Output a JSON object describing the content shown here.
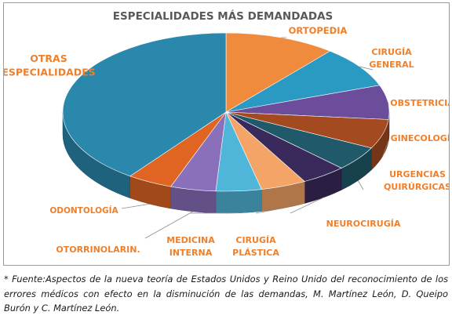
{
  "chart_data": {
    "type": "pie",
    "title": "ESPECIALIDADES MÁS DEMANDADAS",
    "slices": [
      {
        "label": [
          "ORTOPEDIA"
        ],
        "value": 11,
        "color": "#f08a3c"
      },
      {
        "label": [
          "CIRUGÍA",
          "GENERAL"
        ],
        "value": 8.5,
        "color": "#2b9ac3"
      },
      {
        "label": [
          "OBSTETRICIA"
        ],
        "value": 7,
        "color": "#6b4d9c"
      },
      {
        "label": [
          "GINECOLOGÍA"
        ],
        "value": 6,
        "color": "#a34a20"
      },
      {
        "label": [
          "URGENCIAS",
          "QUIRÚRGICAS"
        ],
        "value": 5,
        "color": "#205a6a"
      },
      {
        "label": [
          "NEUROCIRUGÍA"
        ],
        "value": 4.5,
        "color": "#3a2a5c"
      },
      {
        "label": [
          "CIRUGÍA",
          "PLÁSTICA"
        ],
        "value": 4.5,
        "color": "#f3a466"
      },
      {
        "label": [
          "MEDICINA",
          "INTERNA"
        ],
        "value": 4.5,
        "color": "#4fb6d9"
      },
      {
        "label": [
          "OTORRINOLARIN."
        ],
        "value": 4.5,
        "color": "#8a6fbb"
      },
      {
        "label": [
          "ODONTOLOGÍA"
        ],
        "value": 4.5,
        "color": "#e06522"
      },
      {
        "label": [
          "OTRAS",
          "ESPECIALIDADES"
        ],
        "value": 40,
        "color": "#2a88ad"
      }
    ],
    "start": "12 o'clock",
    "direction": "clockwise",
    "style": "3d pie",
    "legend": "none",
    "label_color": "#f07f2a"
  },
  "caption": "* Fuente:Aspectos de la nueva teoría de Estados Unidos y Reino Unido del reconocimiento de los errores médicos con efecto en la disminución de las demandas, M. Martínez León, D. Queipo Burón y C. Martínez León."
}
